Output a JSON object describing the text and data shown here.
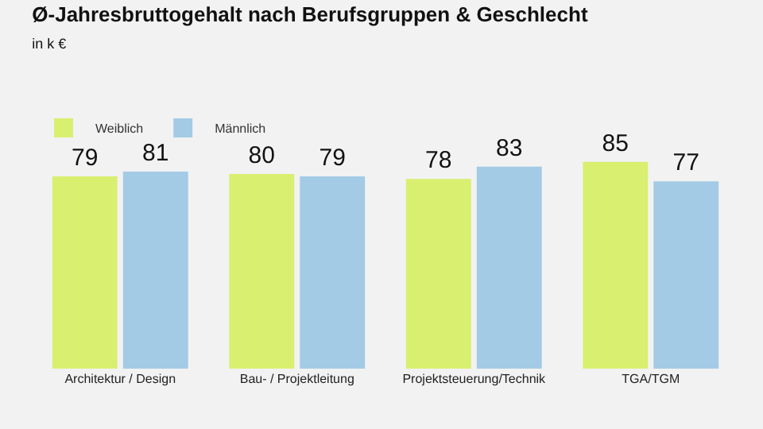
{
  "chart_data": {
    "type": "bar",
    "title": "Ø-Jahresbruttogehalt nach Berufsgruppen & Geschlecht",
    "subtitle": "in k €",
    "categories": [
      "Architektur / Design",
      "Bau- / Projektleitung",
      "Projektsteuerung/Technik",
      "TGA/TGM"
    ],
    "series": [
      {
        "name": "Weiblich",
        "color": "#d9ef6f",
        "values": [
          79,
          80,
          78,
          85
        ]
      },
      {
        "name": "Männlich",
        "color": "#a3cbe5",
        "values": [
          81,
          79,
          83,
          77
        ]
      }
    ],
    "data_labels": true,
    "legend": "top left",
    "grid": false,
    "tick_labels": "x"
  }
}
